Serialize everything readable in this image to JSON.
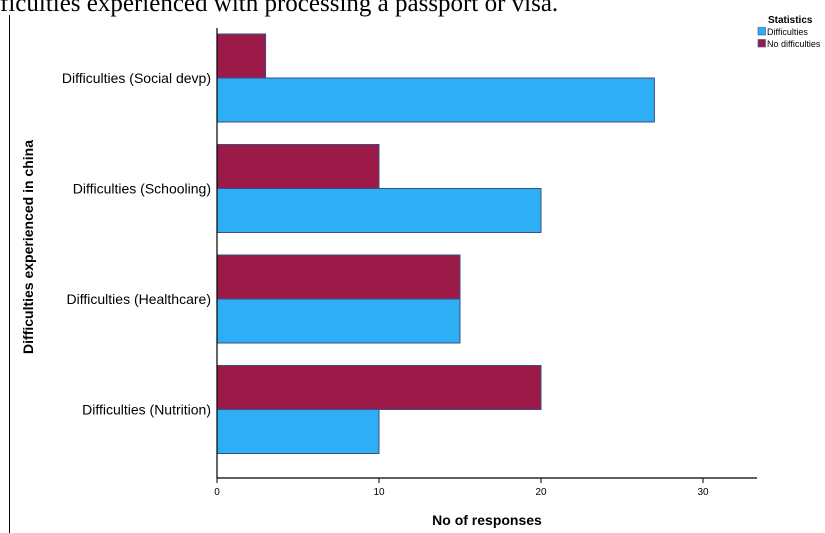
{
  "caption": "ficulties experienced with processing a passport or visa.",
  "chart_data": {
    "type": "bar",
    "orientation": "horizontal",
    "title": "",
    "xlabel": "No of responses",
    "ylabel": "Difficulties experienced in china",
    "categories": [
      "Difficulties (Social devp)",
      "Difficulties (Schooling)",
      "Difficulties (Healthcare)",
      "Difficulties (Nutrition)"
    ],
    "series": [
      {
        "name": "Difficulties",
        "color": "#2eaef5",
        "values": [
          27,
          20,
          15,
          10
        ]
      },
      {
        "name": "No difficulties",
        "color": "#9b1a47",
        "values": [
          3,
          10,
          15,
          20
        ]
      }
    ],
    "xlim": [
      0,
      33.5
    ],
    "xticks": [
      0,
      10,
      20,
      30
    ],
    "grid": false,
    "legend": {
      "title": "Statistics",
      "placement": "top-right",
      "items": [
        "Difficulties",
        "No difficulties"
      ]
    }
  }
}
